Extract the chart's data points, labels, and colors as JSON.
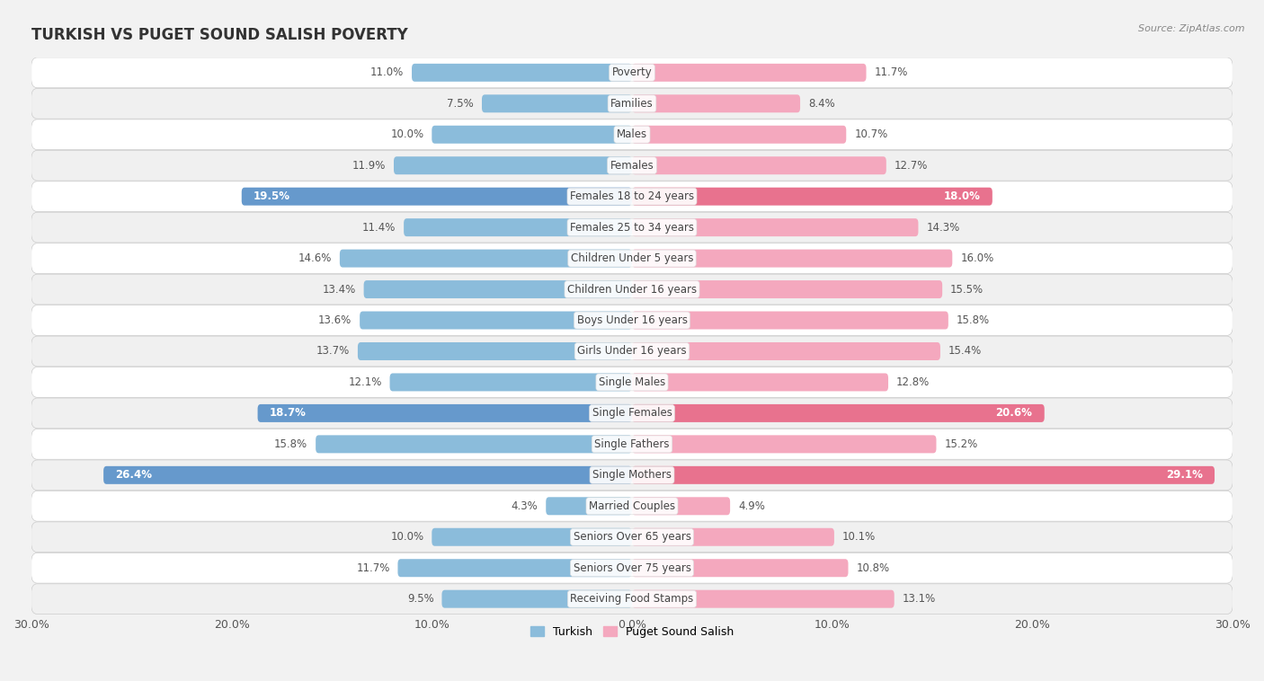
{
  "title": "TURKISH VS PUGET SOUND SALISH POVERTY",
  "source": "Source: ZipAtlas.com",
  "categories": [
    "Poverty",
    "Families",
    "Males",
    "Females",
    "Females 18 to 24 years",
    "Females 25 to 34 years",
    "Children Under 5 years",
    "Children Under 16 years",
    "Boys Under 16 years",
    "Girls Under 16 years",
    "Single Males",
    "Single Females",
    "Single Fathers",
    "Single Mothers",
    "Married Couples",
    "Seniors Over 65 years",
    "Seniors Over 75 years",
    "Receiving Food Stamps"
  ],
  "turkish": [
    11.0,
    7.5,
    10.0,
    11.9,
    19.5,
    11.4,
    14.6,
    13.4,
    13.6,
    13.7,
    12.1,
    18.7,
    15.8,
    26.4,
    4.3,
    10.0,
    11.7,
    9.5
  ],
  "puget": [
    11.7,
    8.4,
    10.7,
    12.7,
    18.0,
    14.3,
    16.0,
    15.5,
    15.8,
    15.4,
    12.8,
    20.6,
    15.2,
    29.1,
    4.9,
    10.1,
    10.8,
    13.1
  ],
  "turkish_color": "#8bbcdb",
  "puget_color": "#f4a8be",
  "turkish_highlight_color": "#6699cc",
  "puget_highlight_color": "#e8728e",
  "highlight_indices": [
    4,
    11,
    13
  ],
  "bar_height": 0.58,
  "xlim": 30.0,
  "row_light_color": "#f0f0f0",
  "row_dark_color": "#e4e4e4",
  "panel_face": "#ffffff",
  "label_fontsize": 8.5,
  "value_fontsize": 8.5,
  "title_fontsize": 12,
  "legend_turkish": "Turkish",
  "legend_puget": "Puget Sound Salish"
}
